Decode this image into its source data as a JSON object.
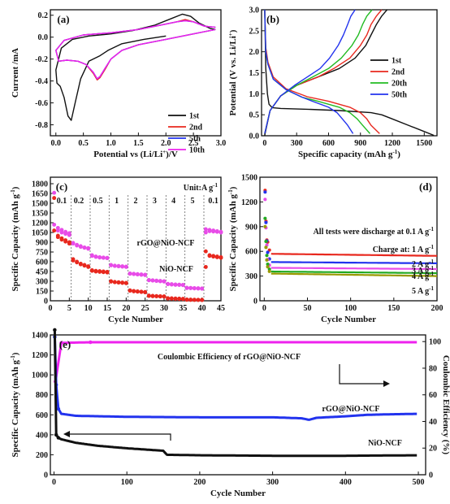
{
  "chart_data": [
    {
      "panel": "(a)",
      "type": "line",
      "xlabel": "Potential vs (Li/Li+)/V",
      "ylabel": "Current /mA",
      "xlim": [
        -0.1,
        3.0
      ],
      "ylim": [
        -0.9,
        0.25
      ],
      "xticks": [
        0.0,
        0.5,
        1.0,
        1.5,
        2.0,
        2.5,
        3.0
      ],
      "yticks": [
        0.2,
        0.0,
        -0.2,
        -0.4,
        -0.6,
        -0.8
      ],
      "legend_position": "right",
      "series": [
        {
          "name": "1st",
          "color": "#111111",
          "x": [
            2.0,
            1.6,
            1.2,
            0.95,
            0.8,
            0.6,
            0.45,
            0.35,
            0.28,
            0.22,
            0.15,
            0.08,
            0.02,
            0.0,
            0.1,
            0.3,
            0.6,
            1.0,
            1.4,
            1.8,
            2.1,
            2.3,
            2.45,
            2.6,
            2.8,
            2.9
          ],
          "y": [
            0.01,
            -0.02,
            -0.06,
            -0.12,
            -0.17,
            -0.22,
            -0.38,
            -0.6,
            -0.76,
            -0.72,
            -0.55,
            -0.45,
            -0.42,
            -0.3,
            -0.1,
            -0.02,
            0.01,
            0.03,
            0.06,
            0.11,
            0.17,
            0.21,
            0.19,
            0.13,
            0.08,
            0.07
          ]
        },
        {
          "name": "2nd",
          "color": "#e8281e",
          "x": [
            2.9,
            2.5,
            2.0,
            1.5,
            1.2,
            1.0,
            0.9,
            0.8,
            0.75,
            0.68,
            0.55,
            0.4,
            0.2,
            0.05,
            0.0,
            0.15,
            0.5,
            1.0,
            1.5,
            1.9,
            2.2,
            2.35,
            2.5,
            2.7,
            2.9
          ],
          "y": [
            0.07,
            0.03,
            -0.02,
            -0.07,
            -0.12,
            -0.2,
            -0.29,
            -0.37,
            -0.39,
            -0.33,
            -0.25,
            -0.22,
            -0.21,
            -0.22,
            -0.12,
            -0.03,
            0.02,
            0.04,
            0.07,
            0.11,
            0.14,
            0.16,
            0.14,
            0.1,
            0.09
          ]
        },
        {
          "name": "5th",
          "color": "#2233ee",
          "x": [
            2.9,
            2.5,
            2.0,
            1.5,
            1.2,
            1.0,
            0.9,
            0.8,
            0.75,
            0.68,
            0.55,
            0.4,
            0.2,
            0.05,
            0.0,
            0.15,
            0.5,
            1.0,
            1.5,
            1.9,
            2.2,
            2.35,
            2.5,
            2.7,
            2.9
          ],
          "y": [
            0.07,
            0.03,
            -0.02,
            -0.07,
            -0.12,
            -0.2,
            -0.28,
            -0.36,
            -0.38,
            -0.32,
            -0.25,
            -0.22,
            -0.21,
            -0.22,
            -0.12,
            -0.03,
            0.02,
            0.04,
            0.07,
            0.11,
            0.14,
            0.15,
            0.14,
            0.1,
            0.09
          ]
        },
        {
          "name": "10th",
          "color": "#ee22ee",
          "x": [
            2.9,
            2.5,
            2.0,
            1.5,
            1.2,
            1.0,
            0.9,
            0.8,
            0.75,
            0.68,
            0.55,
            0.4,
            0.2,
            0.05,
            0.0,
            0.15,
            0.5,
            1.0,
            1.5,
            1.9,
            2.2,
            2.35,
            2.5,
            2.7,
            2.9
          ],
          "y": [
            0.07,
            0.03,
            -0.02,
            -0.07,
            -0.12,
            -0.2,
            -0.28,
            -0.36,
            -0.38,
            -0.32,
            -0.25,
            -0.22,
            -0.21,
            -0.22,
            -0.12,
            -0.03,
            0.02,
            0.04,
            0.07,
            0.11,
            0.14,
            0.15,
            0.14,
            0.1,
            0.09
          ]
        }
      ]
    },
    {
      "panel": "(b)",
      "type": "line",
      "xlabel": "Specific capacity (mAh g-1)",
      "ylabel": "Potential (V vs. Li/Li+)",
      "xlim": [
        -30,
        1620
      ],
      "ylim": [
        0,
        3.0
      ],
      "xticks": [
        0,
        300,
        600,
        900,
        1200,
        1500
      ],
      "yticks": [
        3.0,
        2.5,
        2.0,
        1.5,
        1.0,
        0.5,
        0.0
      ],
      "legend_position": "right",
      "series": [
        {
          "name": "1st",
          "color": "#111111",
          "discharge_x": [
            0,
            10,
            25,
            40,
            70,
            150,
            400,
            700,
            1000,
            1100,
            1200,
            1350,
            1500,
            1590
          ],
          "discharge_y": [
            3.0,
            1.6,
            1.0,
            0.75,
            0.67,
            0.65,
            0.63,
            0.6,
            0.55,
            0.5,
            0.4,
            0.25,
            0.1,
            0.01
          ],
          "charge_x": [
            0,
            50,
            150,
            300,
            500,
            700,
            850,
            950,
            1000,
            1050,
            1100,
            1150
          ],
          "charge_y": [
            0.01,
            0.6,
            0.95,
            1.2,
            1.4,
            1.6,
            1.85,
            2.15,
            2.4,
            2.65,
            2.85,
            3.0
          ]
        },
        {
          "name": "2nd",
          "color": "#e8281e",
          "discharge_x": [
            0,
            10,
            30,
            80,
            200,
            400,
            600,
            800,
            900,
            960,
            1000,
            1080
          ],
          "discharge_y": [
            3.0,
            2.1,
            1.75,
            1.4,
            1.12,
            0.93,
            0.82,
            0.68,
            0.55,
            0.4,
            0.25,
            0.05
          ],
          "charge_x": [
            0,
            50,
            150,
            300,
            500,
            650,
            800,
            900,
            960,
            1000,
            1050,
            1100
          ],
          "charge_y": [
            0.05,
            0.6,
            0.95,
            1.2,
            1.4,
            1.6,
            1.85,
            2.15,
            2.4,
            2.65,
            2.85,
            3.0
          ]
        },
        {
          "name": "20th",
          "color": "#22bb22",
          "discharge_x": [
            0,
            10,
            30,
            80,
            200,
            350,
            500,
            700,
            800,
            870,
            920,
            990
          ],
          "discharge_y": [
            3.0,
            2.0,
            1.7,
            1.35,
            1.1,
            0.92,
            0.82,
            0.68,
            0.55,
            0.4,
            0.25,
            0.05
          ],
          "charge_x": [
            0,
            50,
            150,
            300,
            450,
            600,
            720,
            820,
            880,
            920,
            960,
            1010
          ],
          "charge_y": [
            0.05,
            0.6,
            0.95,
            1.2,
            1.4,
            1.6,
            1.85,
            2.15,
            2.4,
            2.65,
            2.85,
            3.0
          ]
        },
        {
          "name": "50th",
          "color": "#2233ee",
          "discharge_x": [
            0,
            10,
            30,
            80,
            200,
            350,
            450,
            600,
            680,
            730,
            780,
            830
          ],
          "discharge_y": [
            3.0,
            2.0,
            1.7,
            1.35,
            1.1,
            0.92,
            0.82,
            0.68,
            0.55,
            0.4,
            0.25,
            0.05
          ],
          "charge_x": [
            0,
            50,
            150,
            280,
            400,
            520,
            610,
            690,
            740,
            780,
            810,
            850
          ],
          "charge_y": [
            0.05,
            0.6,
            0.95,
            1.2,
            1.4,
            1.6,
            1.85,
            2.15,
            2.4,
            2.65,
            2.85,
            3.0
          ]
        }
      ]
    },
    {
      "panel": "(c)",
      "type": "scatter",
      "xlabel": "Cycle Number",
      "ylabel": "Specific Capacity (mAh g-1)",
      "xlim": [
        0,
        45
      ],
      "ylim": [
        0,
        1900
      ],
      "xticks": [
        0,
        5,
        10,
        15,
        20,
        25,
        30,
        35,
        40,
        45
      ],
      "yticks": [
        0,
        150,
        300,
        450,
        600,
        750,
        900,
        1050,
        1200,
        1350,
        1500,
        1650,
        1800
      ],
      "unit_label": "Unit:A g-1",
      "rate_labels": [
        "0.1",
        "0.2",
        "0.5",
        "1",
        "2",
        "3",
        "4",
        "5",
        "0.1"
      ],
      "rate_boundaries": [
        5,
        10,
        15,
        20,
        25,
        30,
        35,
        40
      ],
      "series": [
        {
          "name": "rGO@NiO-NCF",
          "color": "#e84ce8",
          "charge": [
            1170,
            1120,
            1090,
            1060,
            1040,
            890,
            860,
            840,
            820,
            810,
            700,
            680,
            670,
            665,
            660,
            550,
            540,
            535,
            530,
            525,
            420,
            415,
            410,
            405,
            400,
            320,
            315,
            310,
            305,
            300,
            260,
            255,
            250,
            248,
            245,
            200,
            198,
            195,
            193,
            190,
            1100,
            1090,
            1080,
            1070,
            1060
          ],
          "discharge": [
            1660,
            1080,
            1050,
            1030,
            1010,
            880,
            850,
            830,
            815,
            800,
            690,
            675,
            665,
            660,
            655,
            545,
            535,
            530,
            525,
            520,
            415,
            410,
            405,
            400,
            395,
            315,
            310,
            305,
            300,
            295,
            255,
            250,
            245,
            243,
            240,
            195,
            193,
            190,
            188,
            185,
            1050,
            1070,
            1065,
            1060,
            1050
          ]
        },
        {
          "name": "NiO-NCF",
          "color": "#e8281e",
          "charge": [
            1080,
            1000,
            960,
            930,
            900,
            640,
            600,
            570,
            550,
            530,
            470,
            460,
            455,
            450,
            445,
            300,
            290,
            285,
            280,
            275,
            160,
            150,
            145,
            140,
            135,
            80,
            75,
            72,
            70,
            68,
            40,
            38,
            35,
            33,
            30,
            20,
            18,
            16,
            15,
            14,
            760,
            700,
            690,
            680,
            670
          ],
          "discharge": [
            1580,
            980,
            940,
            910,
            880,
            620,
            590,
            560,
            540,
            520,
            460,
            450,
            445,
            440,
            435,
            295,
            285,
            280,
            275,
            270,
            155,
            145,
            140,
            135,
            130,
            75,
            70,
            68,
            66,
            64,
            35,
            33,
            30,
            28,
            26,
            15,
            14,
            13,
            12,
            11,
            520,
            690,
            680,
            670,
            660
          ]
        }
      ]
    },
    {
      "panel": "(d)",
      "type": "scatter",
      "xlabel": "Cycle Number",
      "ylabel": "Specific Capacity (mAh g-1)",
      "xlim": [
        -5,
        200
      ],
      "ylim": [
        0,
        1500
      ],
      "xticks": [
        0,
        50,
        100,
        150,
        200
      ],
      "yticks": [
        0,
        300,
        600,
        900,
        1200,
        1500
      ],
      "annotations": [
        "All tests were discharge at 0.1 A g-1",
        "Charge at: 1 A g-1",
        "2 A g-1",
        "3 A g-1",
        "4 A g-1",
        "5 A g-1"
      ],
      "series": [
        {
          "name": "1 A g-1",
          "color": "#e8281e",
          "plateau": 570,
          "end": 545,
          "initial": 1340
        },
        {
          "name": "2 A g-1",
          "color": "#2233ee",
          "plateau": 470,
          "end": 455,
          "initial": 1320
        },
        {
          "name": "3 A g-1",
          "color": "#e84ce8",
          "plateau": 400,
          "end": 385,
          "initial": 1230
        },
        {
          "name": "4 A g-1",
          "color": "#22aa22",
          "plateau": 355,
          "end": 335,
          "initial": 1000
        },
        {
          "name": "5 A g-1",
          "color": "#999900",
          "plateau": 330,
          "end": 300,
          "initial": 900
        }
      ]
    },
    {
      "panel": "(e)",
      "type": "scatter",
      "xlabel": "Cycle Number",
      "ylabel": "Specific Capacity (mAh g-1)",
      "y2label": "Coulombic Efficiency (%)",
      "xlim": [
        -5,
        510
      ],
      "ylim": [
        0,
        1400
      ],
      "y2lim": [
        0,
        105
      ],
      "xticks": [
        0,
        100,
        200,
        300,
        400,
        500
      ],
      "yticks": [
        0,
        200,
        400,
        600,
        800,
        1000,
        1200,
        1400
      ],
      "y2ticks": [
        0,
        20,
        40,
        60,
        80,
        100
      ],
      "annotations": [
        "Coulombic Efficiency of rGO@NiO-NCF",
        "rGO@NiO-NCF",
        "NiO-NCF"
      ],
      "series": [
        {
          "name": "Coulombic Efficiency of rGO@NiO-NCF",
          "color": "#ee22ee",
          "axis": "right",
          "x": [
            2,
            10,
            50,
            100,
            200,
            300,
            400,
            500
          ],
          "y": [
            70,
            99,
            99.5,
            99.5,
            99.5,
            99.5,
            99.5,
            99.5
          ]
        },
        {
          "name": "rGO@NiO-NCF",
          "color": "#2233ee",
          "axis": "left",
          "x": [
            1,
            3,
            6,
            10,
            30,
            100,
            200,
            300,
            340,
            350,
            360,
            400,
            430,
            460,
            500
          ],
          "y": [
            1380,
            900,
            660,
            610,
            590,
            580,
            575,
            575,
            565,
            550,
            570,
            585,
            600,
            605,
            610
          ]
        },
        {
          "name": "NiO-NCF",
          "color": "#111111",
          "axis": "left",
          "x": [
            1,
            3,
            6,
            10,
            30,
            60,
            100,
            150,
            155,
            200,
            300,
            400,
            500
          ],
          "y": [
            1450,
            400,
            370,
            355,
            320,
            290,
            265,
            240,
            200,
            195,
            190,
            190,
            195
          ]
        }
      ]
    }
  ]
}
